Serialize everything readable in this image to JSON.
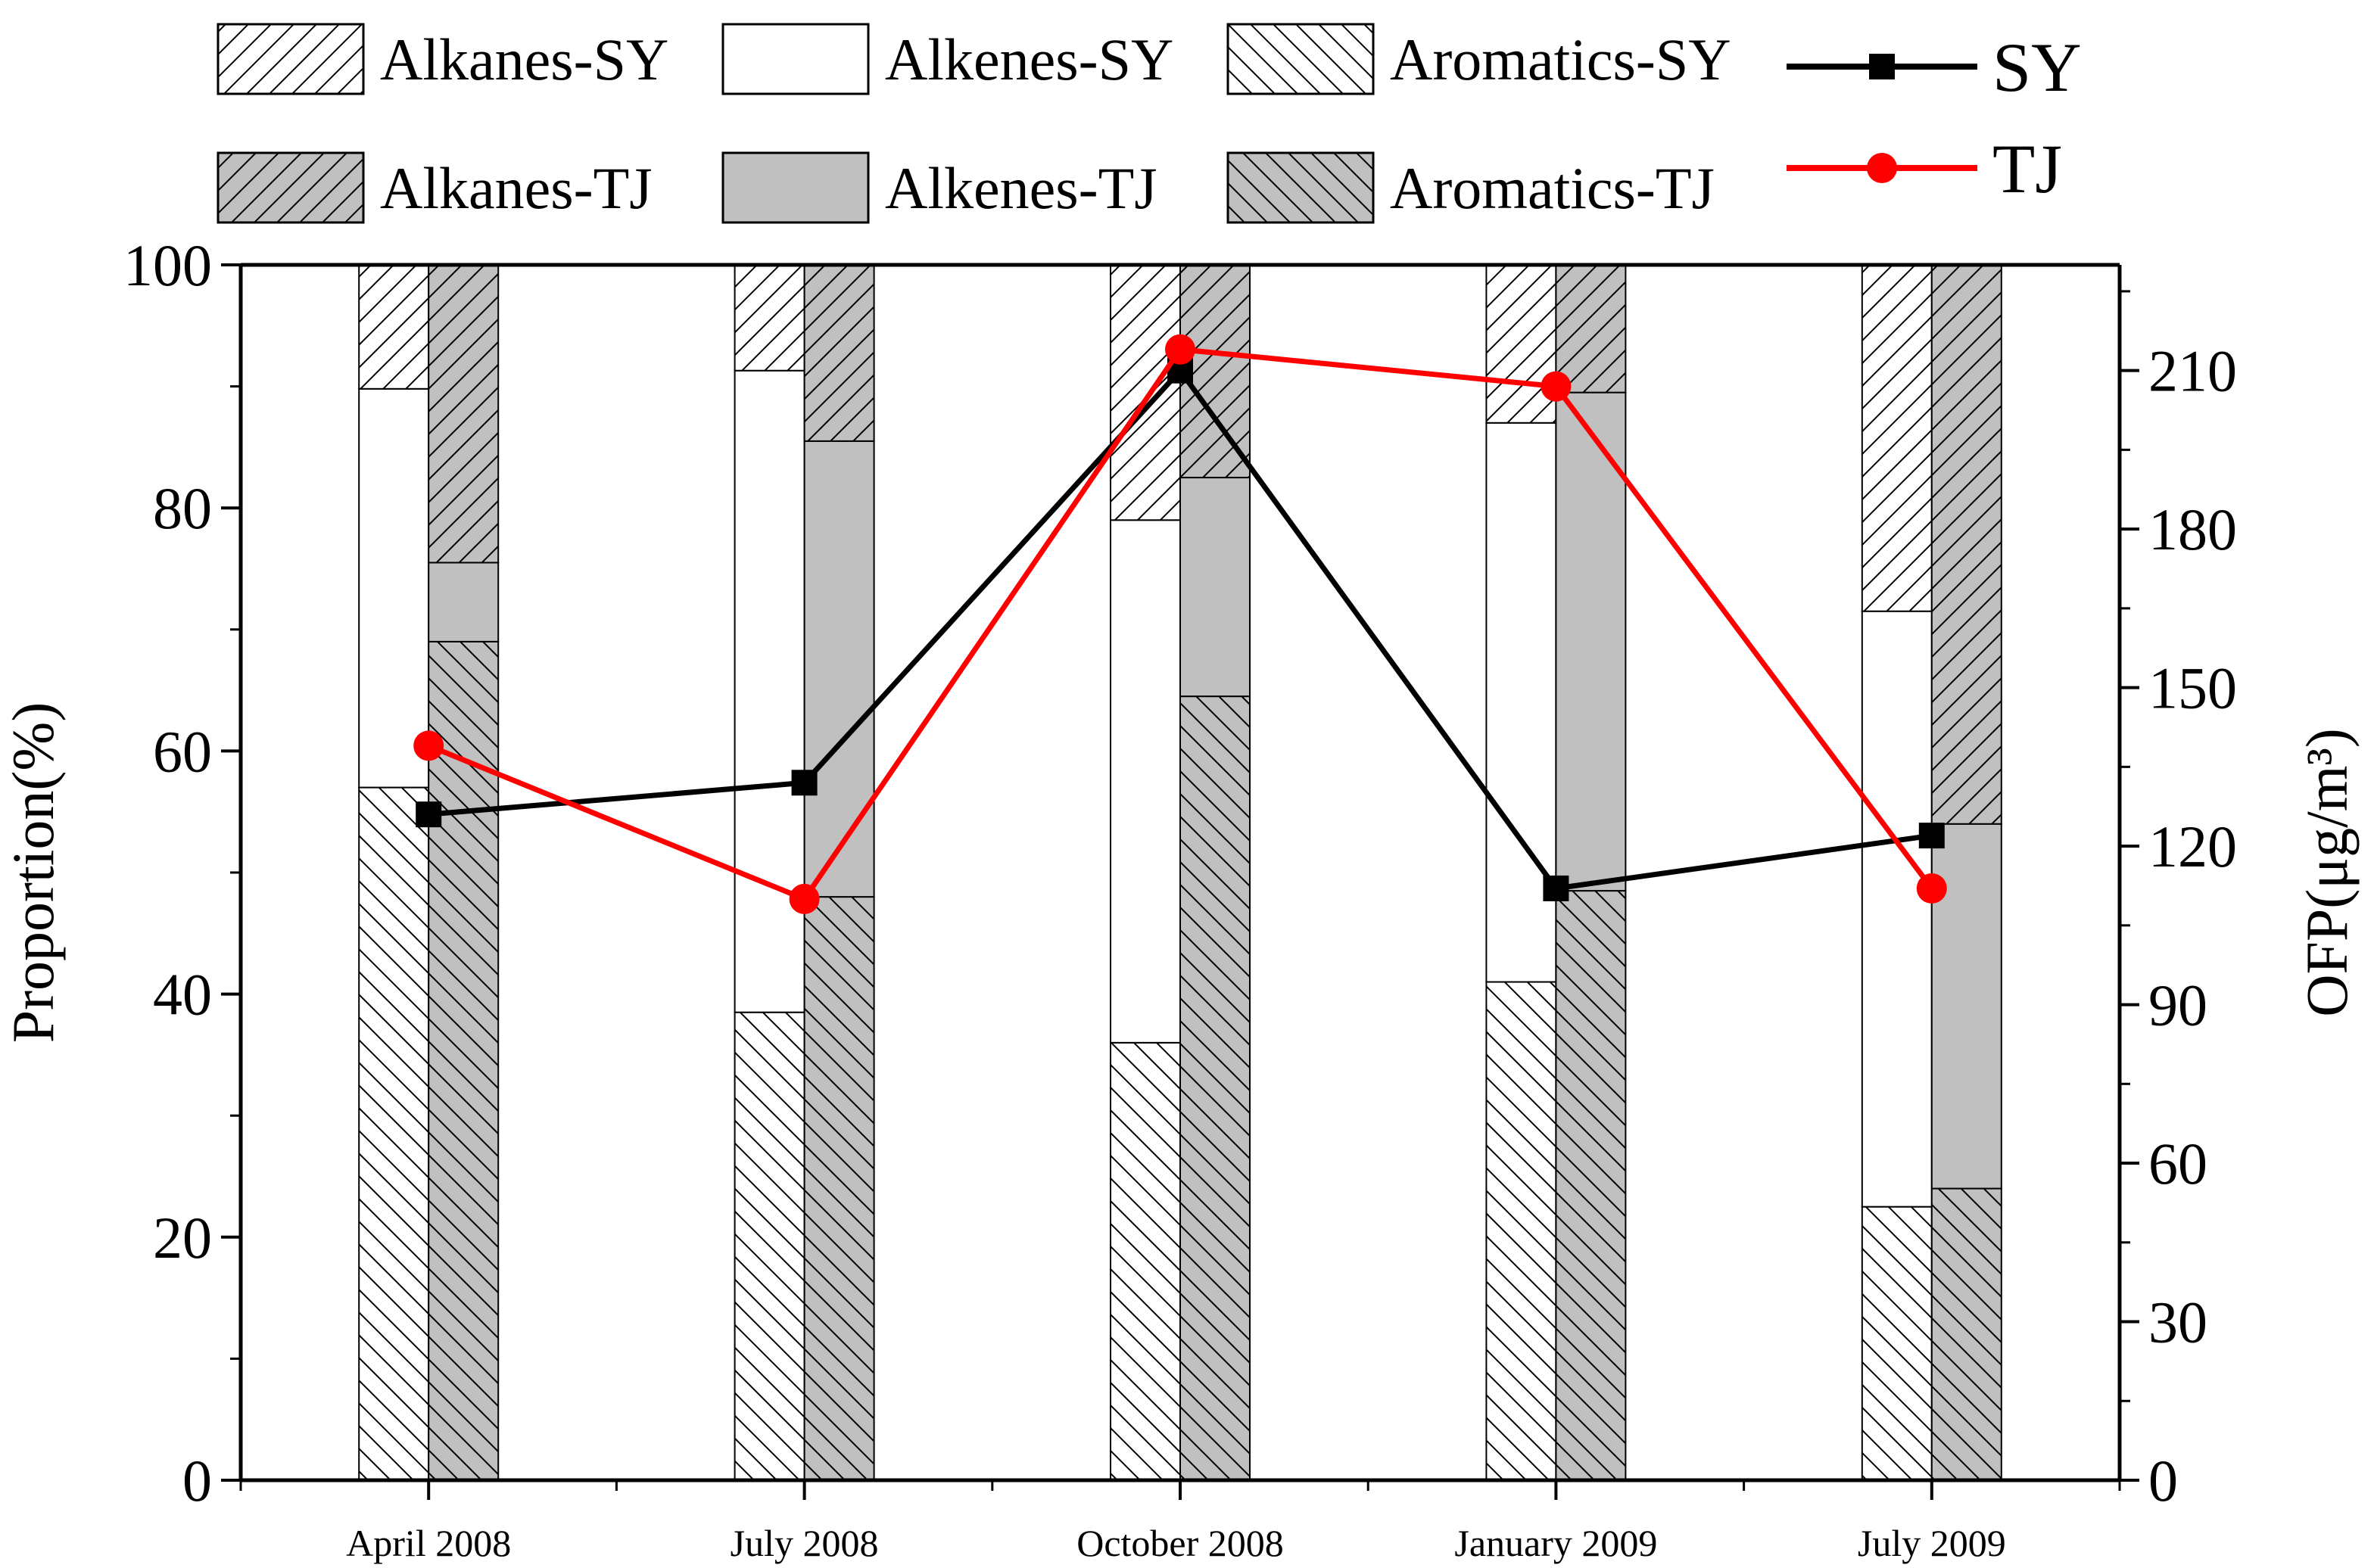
{
  "chart_data": {
    "type": "bar",
    "stacked": true,
    "categories": [
      "April 2008",
      "July 2008",
      "October 2008",
      "January 2009",
      "July 2009"
    ],
    "ylabel": "Proportion(%)",
    "y2label": "OFP(μg/m³)",
    "ylim": [
      0,
      100
    ],
    "y2lim": [
      0,
      230
    ],
    "yticks": [
      0,
      20,
      40,
      60,
      80,
      100
    ],
    "y2ticks": [
      0,
      30,
      60,
      90,
      120,
      150,
      180,
      210
    ],
    "bar_groups": [
      {
        "site": "SY",
        "stack": [
          {
            "name": "Aromatics-SY",
            "values": [
              57,
              38.5,
              36,
              41,
              22.5
            ]
          },
          {
            "name": "Alkenes-SY",
            "values": [
              32.8,
              52.8,
              43,
              46,
              49
            ]
          },
          {
            "name": "Alkanes-SY",
            "values": [
              10.2,
              8.7,
              21,
              13,
              28.5
            ]
          }
        ]
      },
      {
        "site": "TJ",
        "stack": [
          {
            "name": "Aromatics-TJ",
            "values": [
              69,
              48,
              64.5,
              48.5,
              24
            ]
          },
          {
            "name": "Alkenes-TJ",
            "values": [
              6.5,
              37.5,
              18,
              41,
              30
            ]
          },
          {
            "name": "Alkanes-TJ",
            "values": [
              24.5,
              14.5,
              17.5,
              10.5,
              46
            ]
          }
        ]
      }
    ],
    "line_series": [
      {
        "name": "SY",
        "axis": "right",
        "color": "#000000",
        "marker": "square",
        "values": [
          126,
          132,
          210,
          112,
          122
        ]
      },
      {
        "name": "TJ",
        "axis": "right",
        "color": "#ff0000",
        "marker": "circle",
        "values": [
          139,
          110,
          214,
          207,
          112
        ]
      }
    ],
    "legend": {
      "row1": [
        "Alkanes-SY",
        "Alkenes-SY",
        "Aromatics-SY",
        "SY"
      ],
      "row2": [
        "Alkanes-TJ",
        "Alkenes-TJ",
        "Aromatics-TJ",
        "TJ"
      ]
    },
    "colors": {
      "sy_fill": "#ffffff",
      "tj_fill": "#c0c0c0",
      "sy_line": "#000000",
      "tj_line": "#ff0000"
    }
  }
}
